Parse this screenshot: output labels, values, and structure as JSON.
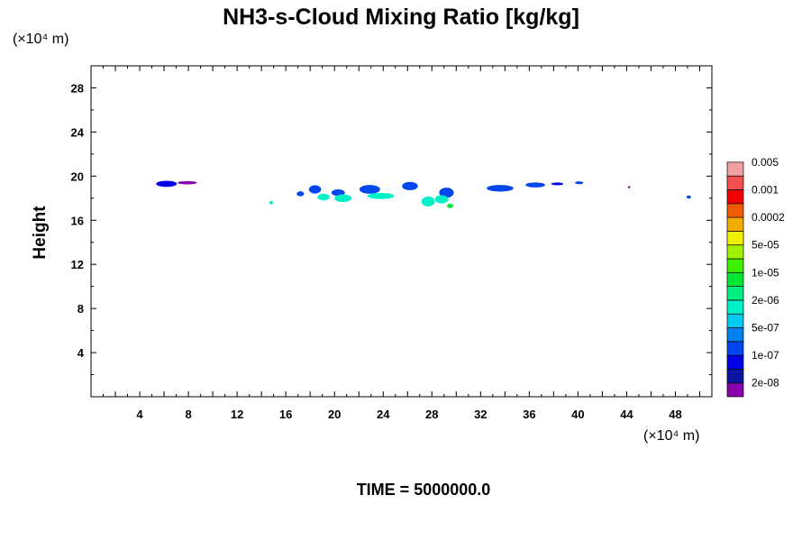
{
  "chart_data": {
    "type": "heatmap",
    "title": "NH3-s-Cloud Mixing Ratio [kg/kg]",
    "ylabel": "Height",
    "y_unit": "(×10⁴ m)",
    "x_unit": "(×10⁴ m)",
    "xlim": [
      0,
      51
    ],
    "ylim": [
      0,
      30
    ],
    "x_ticks": [
      4,
      8,
      12,
      16,
      20,
      24,
      28,
      32,
      36,
      40,
      44,
      48
    ],
    "y_ticks": [
      4,
      8,
      12,
      16,
      20,
      24,
      28
    ],
    "x_tick_labels": [
      "4",
      "8",
      "12",
      "16",
      "20",
      "24",
      "28",
      "32",
      "36",
      "40",
      "44",
      "48"
    ],
    "y_tick_labels": [
      "4",
      "8",
      "12",
      "16",
      "20",
      "24",
      "28"
    ],
    "grid": false,
    "legend_placement": "right",
    "colorbar": {
      "colors": [
        "#8800aa",
        "#0a14a0",
        "#0000e6",
        "#0046f0",
        "#0082f0",
        "#00c8f0",
        "#00f0c8",
        "#00f082",
        "#00e632",
        "#3cf000",
        "#a0f000",
        "#f0f000",
        "#f0aa00",
        "#f05a00",
        "#f00000",
        "#f05050",
        "#f0a0a0"
      ],
      "labels": [
        "2e-08",
        "1e-07",
        "5e-07",
        "2e-06",
        "1e-05",
        "5e-05",
        "0.0002",
        "0.001",
        "0.005"
      ],
      "label_levels": [
        1,
        3,
        5,
        7,
        9,
        11,
        13,
        15,
        17
      ]
    },
    "blobs": [
      {
        "x": 6.2,
        "y": 19.3,
        "w": 1.7,
        "h": 0.55,
        "level": 2
      },
      {
        "x": 7.9,
        "y": 19.4,
        "w": 1.6,
        "h": 0.3,
        "level": 0
      },
      {
        "x": 14.8,
        "y": 17.6,
        "w": 0.3,
        "h": 0.3,
        "level": 6
      },
      {
        "x": 17.2,
        "y": 18.4,
        "w": 0.6,
        "h": 0.45,
        "level": 3
      },
      {
        "x": 18.4,
        "y": 18.8,
        "w": 1.0,
        "h": 0.75,
        "level": 3
      },
      {
        "x": 19.1,
        "y": 18.1,
        "w": 1.0,
        "h": 0.6,
        "level": 6
      },
      {
        "x": 20.3,
        "y": 18.5,
        "w": 1.1,
        "h": 0.6,
        "level": 3
      },
      {
        "x": 20.7,
        "y": 18.0,
        "w": 1.4,
        "h": 0.7,
        "level": 6
      },
      {
        "x": 22.9,
        "y": 18.8,
        "w": 1.7,
        "h": 0.8,
        "level": 3
      },
      {
        "x": 23.8,
        "y": 18.2,
        "w": 2.2,
        "h": 0.55,
        "level": 6
      },
      {
        "x": 26.2,
        "y": 19.1,
        "w": 1.3,
        "h": 0.75,
        "level": 3
      },
      {
        "x": 27.7,
        "y": 17.7,
        "w": 1.1,
        "h": 0.9,
        "level": 6
      },
      {
        "x": 29.2,
        "y": 18.5,
        "w": 1.2,
        "h": 0.9,
        "level": 3
      },
      {
        "x": 28.8,
        "y": 17.9,
        "w": 1.1,
        "h": 0.75,
        "level": 6
      },
      {
        "x": 29.5,
        "y": 17.3,
        "w": 0.5,
        "h": 0.4,
        "level": 8
      },
      {
        "x": 33.6,
        "y": 18.9,
        "w": 2.2,
        "h": 0.6,
        "level": 3
      },
      {
        "x": 36.5,
        "y": 19.2,
        "w": 1.6,
        "h": 0.45,
        "level": 3
      },
      {
        "x": 38.3,
        "y": 19.3,
        "w": 1.0,
        "h": 0.25,
        "level": 2
      },
      {
        "x": 40.1,
        "y": 19.4,
        "w": 0.7,
        "h": 0.25,
        "level": 3
      },
      {
        "x": 44.2,
        "y": 19.0,
        "w": 0.2,
        "h": 0.2,
        "level": 0
      },
      {
        "x": 49.1,
        "y": 18.1,
        "w": 0.35,
        "h": 0.3,
        "level": 3
      }
    ]
  },
  "footer": {
    "time_label": "TIME = 5000000.0"
  }
}
